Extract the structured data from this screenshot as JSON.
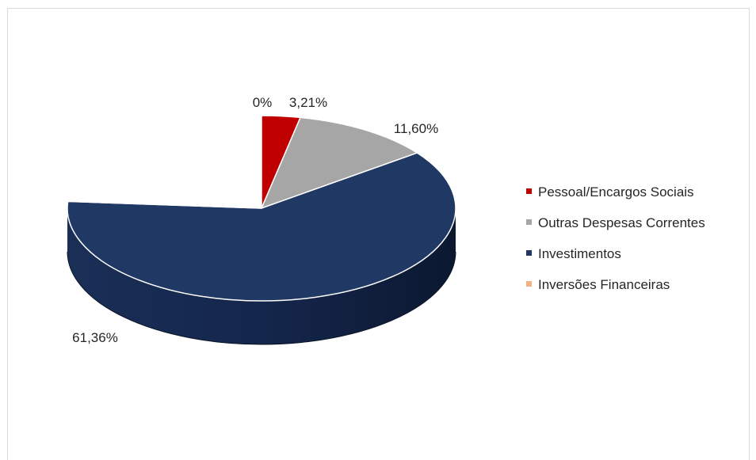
{
  "chart_data": {
    "type": "pie",
    "style": "3d",
    "title": "",
    "legend_position": "right",
    "slices": [
      {
        "name": "Pessoal/Encargos Sociais",
        "value": 3.21,
        "label": "3,21%",
        "color": "#c00000"
      },
      {
        "name": "Outras Despesas Correntes",
        "value": 11.6,
        "label": "11,60%",
        "color": "#a6a6a6"
      },
      {
        "name": "Investimentos",
        "value": 61.36,
        "label": "61,36%",
        "color": "#1f3864"
      },
      {
        "name": "Inversões Financeiras",
        "value": 0,
        "label": "0%",
        "color": "#f4b183"
      }
    ]
  }
}
